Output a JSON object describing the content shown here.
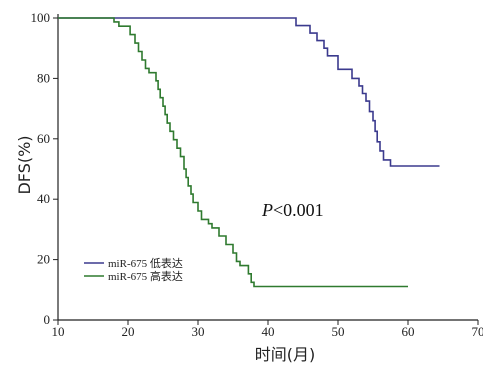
{
  "chart_data": {
    "type": "line",
    "ylabel": "DFS(%)",
    "xlabel": "时间(月)",
    "xlim": [
      10,
      70
    ],
    "ylim": [
      0,
      100
    ],
    "x_ticks": [
      "10",
      "20",
      "30",
      "40",
      "50",
      "60",
      "70"
    ],
    "y_ticks": [
      "0",
      "20",
      "40",
      "60",
      "80",
      "100"
    ],
    "annotation": {
      "italic": "P",
      "rest": "<0.001"
    },
    "legend": {
      "position": "lower-left"
    },
    "series": [
      {
        "name": "miR-675 低表达",
        "color": "#3b3a8e",
        "step": true,
        "points": [
          [
            10,
            100
          ],
          [
            44,
            100
          ],
          [
            44,
            97.5
          ],
          [
            46,
            97.5
          ],
          [
            46,
            95
          ],
          [
            47,
            95
          ],
          [
            47,
            92.5
          ],
          [
            48,
            92.5
          ],
          [
            48,
            90
          ],
          [
            48.5,
            90
          ],
          [
            48.5,
            87.5
          ],
          [
            50,
            87.5
          ],
          [
            50,
            83
          ],
          [
            52,
            83
          ],
          [
            52,
            80
          ],
          [
            53,
            80
          ],
          [
            53,
            77.5
          ],
          [
            53.5,
            77.5
          ],
          [
            53.5,
            75
          ],
          [
            54,
            75
          ],
          [
            54,
            72.5
          ],
          [
            54.5,
            72.5
          ],
          [
            54.5,
            69
          ],
          [
            55,
            69
          ],
          [
            55,
            66
          ],
          [
            55.3,
            66
          ],
          [
            55.3,
            62.5
          ],
          [
            55.6,
            62.5
          ],
          [
            55.6,
            59
          ],
          [
            56,
            59
          ],
          [
            56,
            56
          ],
          [
            56.5,
            56
          ],
          [
            56.5,
            53
          ],
          [
            57.5,
            53
          ],
          [
            57.5,
            51
          ],
          [
            64.5,
            51
          ]
        ]
      },
      {
        "name": "miR-675 高表达",
        "color": "#2f7a2f",
        "step": true,
        "points": [
          [
            10,
            100
          ],
          [
            18,
            100
          ],
          [
            18,
            98.7
          ],
          [
            18.7,
            98.7
          ],
          [
            18.7,
            97.3
          ],
          [
            20.3,
            97.3
          ],
          [
            20.3,
            94.5
          ],
          [
            21,
            94.5
          ],
          [
            21,
            91.7
          ],
          [
            21.5,
            91.7
          ],
          [
            21.5,
            88.9
          ],
          [
            22,
            88.9
          ],
          [
            22,
            86.1
          ],
          [
            22.5,
            86.1
          ],
          [
            22.5,
            83.3
          ],
          [
            23,
            83.3
          ],
          [
            23,
            81.9
          ],
          [
            24,
            81.9
          ],
          [
            24,
            79.2
          ],
          [
            24.3,
            79.2
          ],
          [
            24.3,
            76.4
          ],
          [
            24.6,
            76.4
          ],
          [
            24.6,
            73.6
          ],
          [
            25,
            73.6
          ],
          [
            25,
            70.8
          ],
          [
            25.3,
            70.8
          ],
          [
            25.3,
            68
          ],
          [
            25.6,
            68
          ],
          [
            25.6,
            65.2
          ],
          [
            26,
            65.2
          ],
          [
            26,
            62.5
          ],
          [
            26.5,
            62.5
          ],
          [
            26.5,
            59.7
          ],
          [
            27,
            59.7
          ],
          [
            27,
            56.9
          ],
          [
            27.5,
            56.9
          ],
          [
            27.5,
            54.1
          ],
          [
            28,
            54.1
          ],
          [
            28,
            50
          ],
          [
            28.3,
            50
          ],
          [
            28.3,
            47.2
          ],
          [
            28.6,
            47.2
          ],
          [
            28.6,
            44.4
          ],
          [
            29,
            44.4
          ],
          [
            29,
            41.7
          ],
          [
            29.3,
            41.7
          ],
          [
            29.3,
            38.9
          ],
          [
            30,
            38.9
          ],
          [
            30,
            36.1
          ],
          [
            30.5,
            36.1
          ],
          [
            30.5,
            33.3
          ],
          [
            31.5,
            33.3
          ],
          [
            31.5,
            31.9
          ],
          [
            32,
            31.9
          ],
          [
            32,
            30.5
          ],
          [
            33,
            30.5
          ],
          [
            33,
            27.8
          ],
          [
            34,
            27.8
          ],
          [
            34,
            25
          ],
          [
            35,
            25
          ],
          [
            35,
            22.2
          ],
          [
            35.5,
            22.2
          ],
          [
            35.5,
            19.4
          ],
          [
            36,
            19.4
          ],
          [
            36,
            18
          ],
          [
            37.2,
            18
          ],
          [
            37.2,
            15.3
          ],
          [
            37.6,
            15.3
          ],
          [
            37.6,
            12.5
          ],
          [
            38,
            12.5
          ],
          [
            38,
            11.1
          ],
          [
            60,
            11.1
          ]
        ]
      }
    ]
  }
}
